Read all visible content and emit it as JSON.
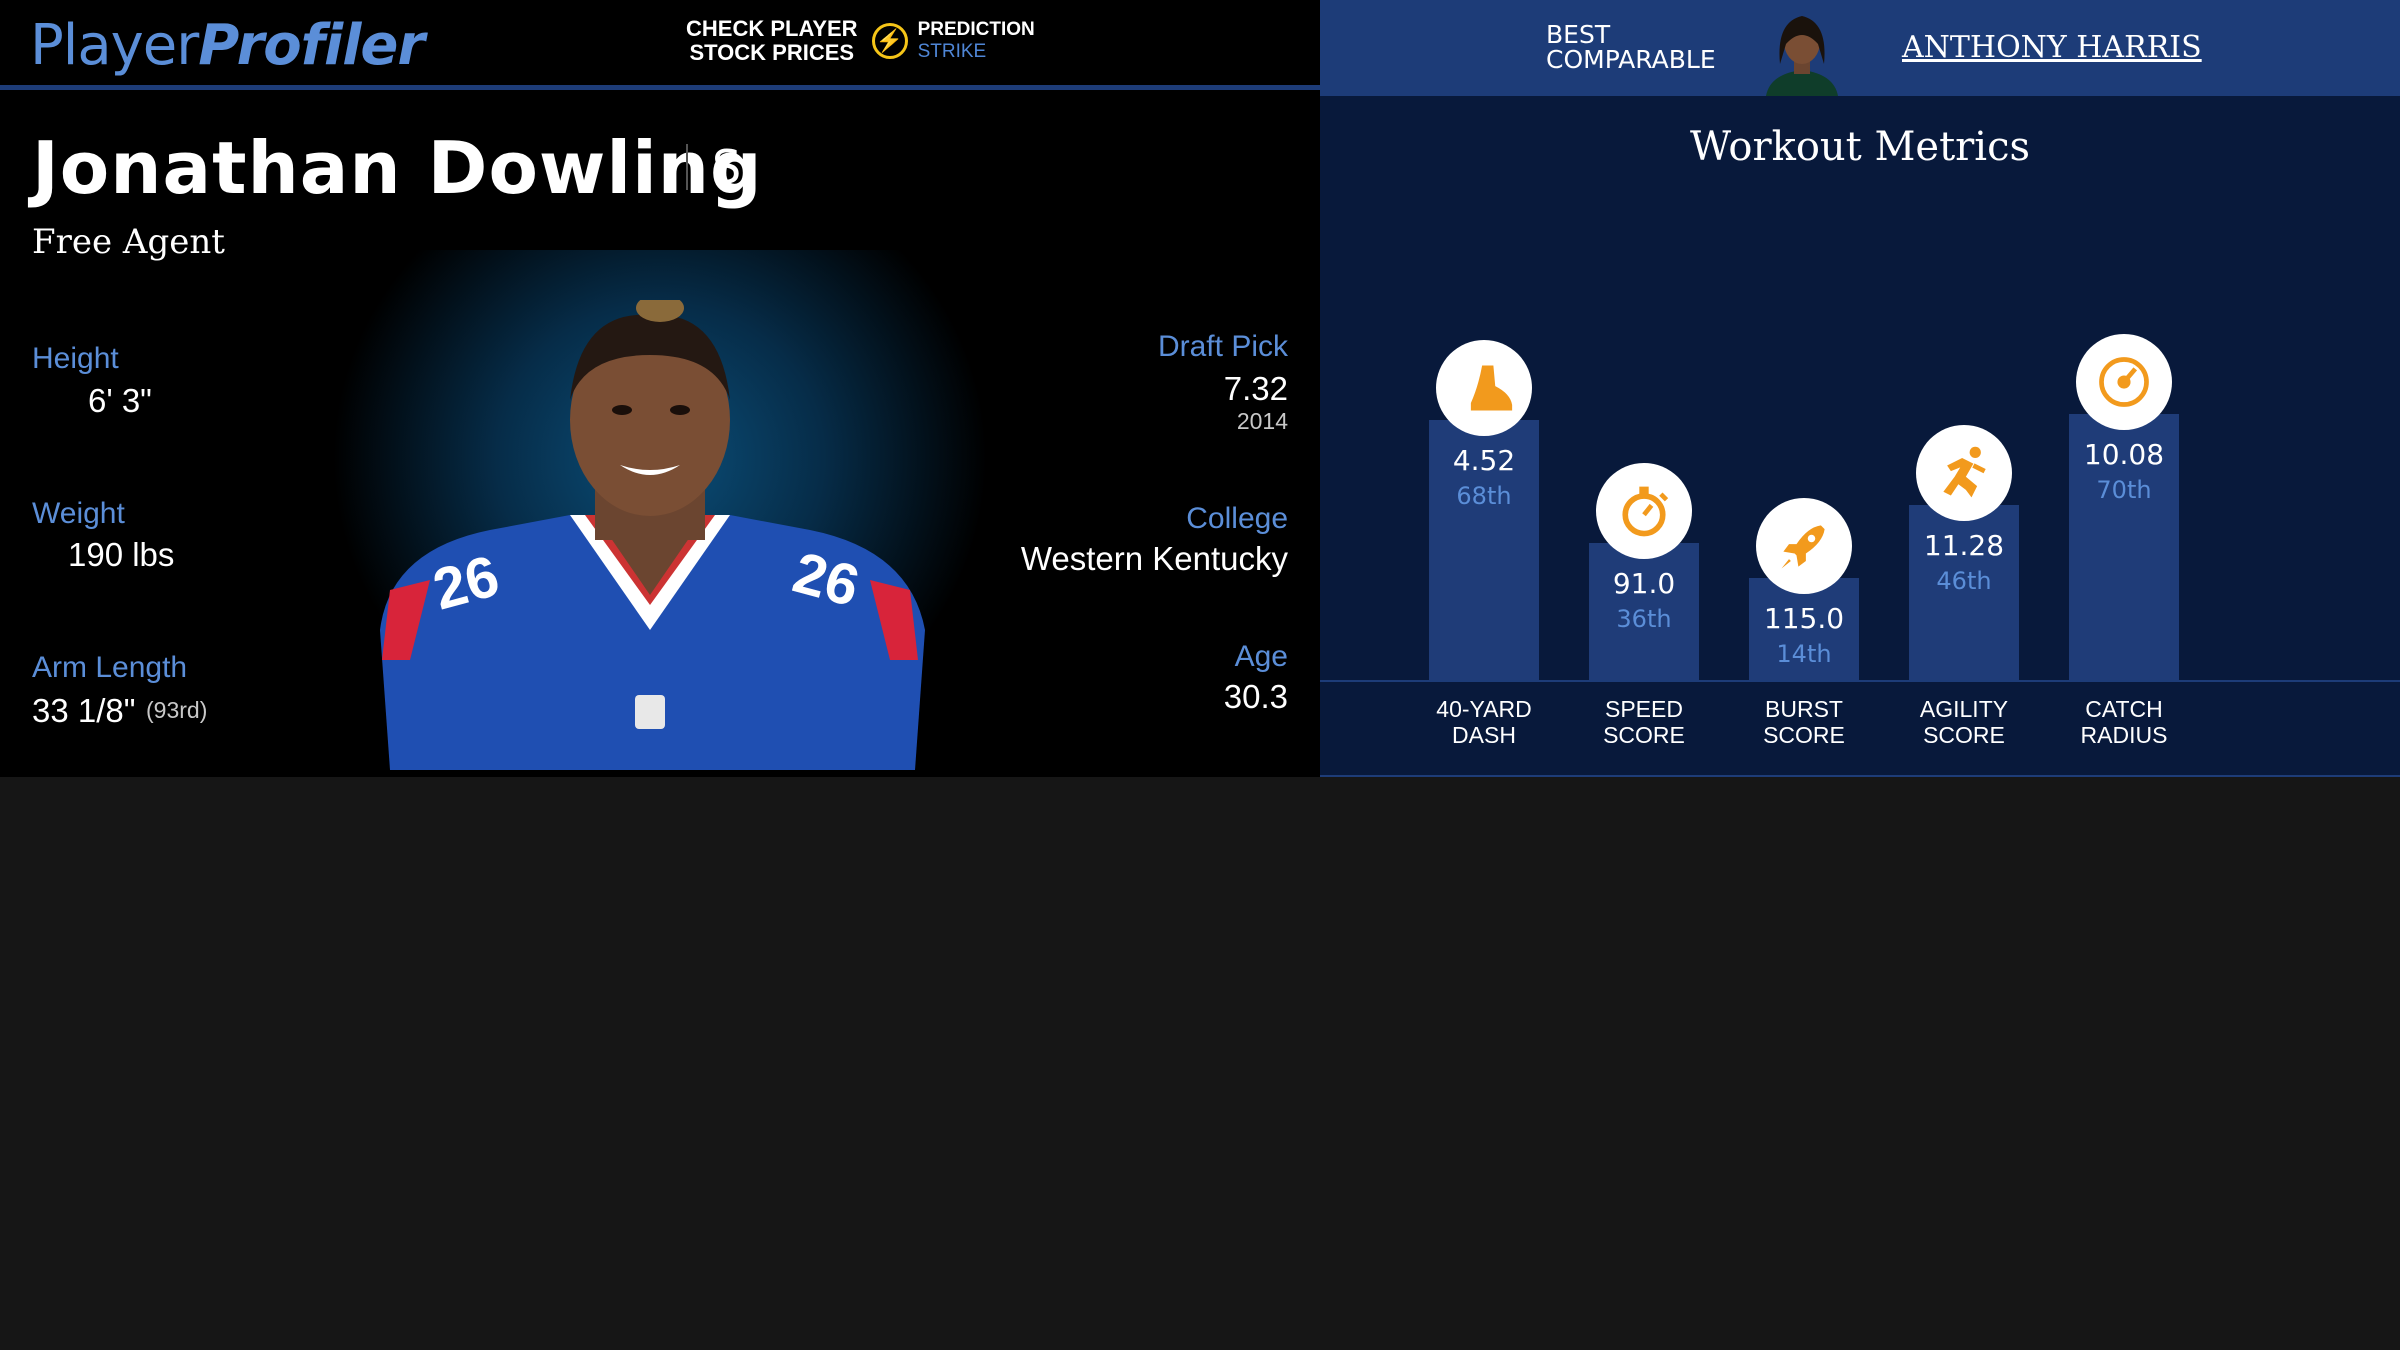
{
  "header": {
    "logo_part1": "Player",
    "logo_part2": "Profiler",
    "promo_text": "CHECK PLAYER\nSTOCK PRICES",
    "promo_brand_1": "PREDICTION",
    "promo_brand_2": "STRIKE"
  },
  "player": {
    "name": "Jonathan Dowling",
    "position": "S",
    "team": "Free Agent"
  },
  "stats_left": [
    {
      "label": "Height",
      "value": "6' 3\""
    },
    {
      "label": "Weight",
      "value": "190 lbs"
    },
    {
      "label": "Arm Length",
      "value": "33 1/8\"",
      "sub": "(93rd)"
    }
  ],
  "stats_right": [
    {
      "label": "Draft Pick",
      "value": "7.32",
      "sub": "2014"
    },
    {
      "label": "College",
      "value": "Western Kentucky"
    },
    {
      "label": "Age",
      "value": "30.3"
    }
  ],
  "comparable": {
    "label": "BEST\nCOMPARABLE",
    "name": "ANTHONY HARRIS"
  },
  "metrics": {
    "title": "Workout Metrics",
    "icon_color": "#f29a1d",
    "items": [
      {
        "label": "40-YARD\nDASH",
        "value": "4.52",
        "percentile": "68th",
        "level": 68,
        "icon": "shoe-icon"
      },
      {
        "label": "SPEED\nSCORE",
        "value": "91.0",
        "percentile": "36th",
        "level": 36,
        "icon": "stopwatch-icon"
      },
      {
        "label": "BURST\nSCORE",
        "value": "115.0",
        "percentile": "14th",
        "level": 14,
        "icon": "rocket-icon"
      },
      {
        "label": "AGILITY\nSCORE",
        "value": "11.28",
        "percentile": "46th",
        "level": 46,
        "icon": "runner-icon"
      },
      {
        "label": "CATCH\nRADIUS",
        "value": "10.08",
        "percentile": "70th",
        "level": 70,
        "icon": "target-icon"
      }
    ]
  }
}
